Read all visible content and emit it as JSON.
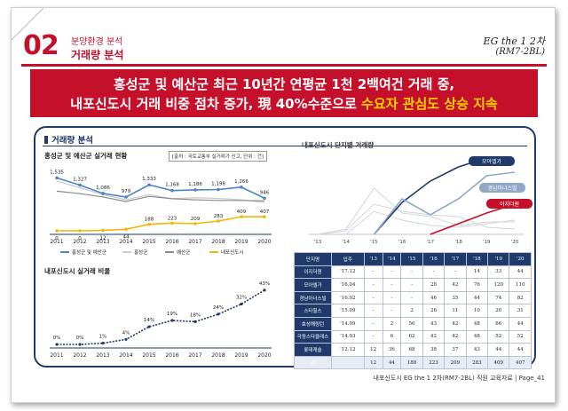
{
  "header": {
    "section_number": "02",
    "subtitle": "분양환경 분석",
    "title": "거래량 분석",
    "brand_line1": "EG the 1 2차",
    "brand_line2": "(RM7-2BL)"
  },
  "banner": {
    "line1": "홍성군 및 예산군 최근 10년간 연평균 1천 2백여건 거래 중,",
    "line2_prefix": "내포신도시 거래 비중 점차 증가, 現 40%수준으로 ",
    "line2_highlight": "수요자 관심도 상승 지속"
  },
  "panel": {
    "title": "거래량 분석",
    "chart1_label": "홍성군 및 예산군 실거래 현황",
    "chart1_source": "[출처 : 국토교통부 실거래가 신고, 단위 : 건]",
    "chart2_label": "내포신도시 실거래 비율",
    "chart3_label": "내포신도시 단지별 거래량"
  },
  "chart_data": [
    {
      "type": "line",
      "x": [
        "2011",
        "2012",
        "2013",
        "2014",
        "2015",
        "2016",
        "2017",
        "2018",
        "2019",
        "2020"
      ],
      "series": [
        {
          "name": "홍성군 및 예산군",
          "color": "#4a86c8",
          "values": [
            1535,
            1327,
            1086,
            979,
            1333,
            1168,
            1186,
            1198,
            1266,
            946
          ]
        },
        {
          "name": "홍성군",
          "color": "#c9c9c9",
          "values": [
            null,
            null,
            null,
            null,
            null,
            null,
            null,
            null,
            null,
            null
          ]
        },
        {
          "name": "예산군",
          "color": "#8c8c8c",
          "values": [
            null,
            null,
            null,
            null,
            null,
            null,
            null,
            null,
            null,
            null
          ]
        },
        {
          "name": "내포신도시",
          "color": "#f2b705",
          "values": [
            0,
            0,
            12,
            44,
            188,
            223,
            209,
            283,
            409,
            407
          ]
        }
      ]
    },
    {
      "type": "line",
      "x": [
        "2011",
        "2012",
        "2013",
        "2014",
        "2015",
        "2016",
        "2017",
        "2018",
        "2019",
        "2020"
      ],
      "series": [
        {
          "name": "",
          "color": "#1f3a6b",
          "values": [
            0,
            0,
            1,
            4,
            14,
            19,
            18,
            24,
            32,
            43
          ],
          "unit": "%"
        }
      ]
    },
    {
      "type": "line",
      "x": [
        "'13",
        "'14",
        "'15",
        "'16",
        "'17",
        "'18",
        "'19",
        "'20"
      ],
      "series": [
        {
          "name": "모아엘가",
          "color": "#1f3a6b"
        },
        {
          "name": "경남아너스빌",
          "color": "#8fa8c8"
        },
        {
          "name": "이지더원",
          "color": "#c4102a"
        }
      ]
    },
    {
      "type": "table",
      "columns": [
        "단지명",
        "입주",
        "'13",
        "'14",
        "'15",
        "'16",
        "'17",
        "'18",
        "'19",
        "'20"
      ],
      "rows": [
        [
          "이지더원",
          "'17.12",
          "-",
          "-",
          "-",
          "-",
          "-",
          "14",
          "33",
          "44"
        ],
        [
          "모아엘가",
          "'16.04",
          "-",
          "-",
          "-",
          "28",
          "42",
          "76",
          "120",
          "110"
        ],
        [
          "경남아너스빌",
          "'16.02",
          "-",
          "-",
          "-",
          "46",
          "35",
          "44",
          "74",
          "82"
        ],
        [
          "스타힐스",
          "'15.09",
          "-",
          "-",
          "2",
          "26",
          "11",
          "10",
          "20",
          "31"
        ],
        [
          "효성해링턴",
          "'14.09",
          "-",
          "2",
          "56",
          "43",
          "42",
          "48",
          "66",
          "44"
        ],
        [
          "극동스타클래스",
          "'14.03",
          "-",
          "6",
          "62",
          "42",
          "42",
          "48",
          "52",
          "52"
        ],
        [
          "롯데캐슬",
          "'12.12",
          "12",
          "36",
          "68",
          "38",
          "37",
          "43",
          "44",
          "44"
        ],
        [
          "계",
          "",
          "12",
          "44",
          "188",
          "223",
          "209",
          "283",
          "409",
          "407"
        ]
      ]
    }
  ],
  "footer": {
    "text": "내포신도시 EG the 1 2차(RM7-2BL) 직원 교육자료 | Page_41"
  }
}
